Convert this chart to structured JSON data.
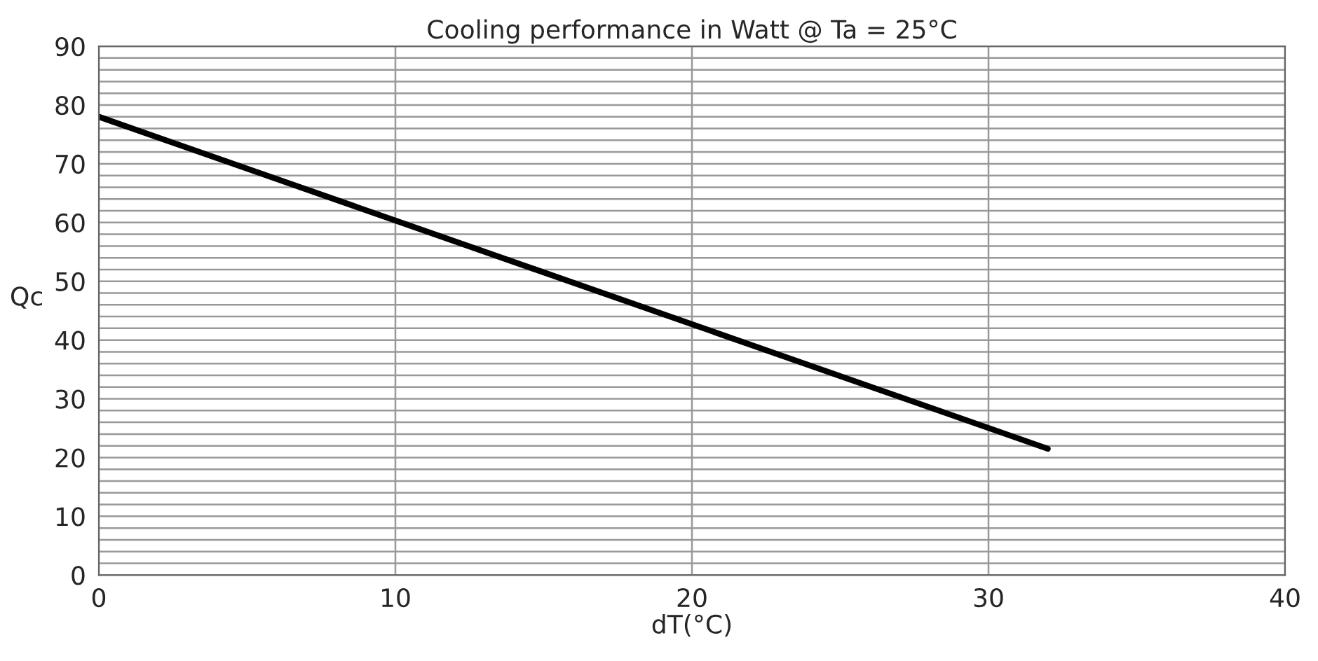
{
  "chart_data": {
    "type": "line",
    "title": "Cooling performance in Watt @ Ta = 25°C",
    "xlabel": "dT(°C)",
    "ylabel": "Qc",
    "x": [
      0,
      32
    ],
    "series": [
      {
        "color": "#000000",
        "values": [
          78,
          21.5
        ]
      }
    ],
    "xlim": [
      0,
      40
    ],
    "xticks": [
      0,
      10,
      20,
      30,
      40
    ],
    "ylim": [
      0,
      90
    ],
    "yticks": [
      0,
      {
        "value": 2,
        "label": null
      },
      {
        "value": 4,
        "label": null
      },
      {
        "value": 6,
        "label": null
      },
      {
        "value": 8,
        "label": null
      },
      10,
      {
        "value": 12,
        "label": null
      },
      {
        "value": 14,
        "label": null
      },
      {
        "value": 16,
        "label": null
      },
      {
        "value": 18,
        "label": null
      },
      20,
      {
        "value": 22,
        "label": null
      },
      {
        "value": 24,
        "label": null
      },
      {
        "value": 26,
        "label": null
      },
      {
        "value": 28,
        "label": null
      },
      30,
      {
        "value": 32,
        "label": null
      },
      {
        "value": 34,
        "label": null
      },
      {
        "value": 36,
        "label": null
      },
      {
        "value": 38,
        "label": null
      },
      40,
      {
        "value": 42,
        "label": null
      },
      {
        "value": 44,
        "label": null
      },
      {
        "value": 46,
        "label": null
      },
      {
        "value": 48,
        "label": null
      },
      50,
      {
        "value": 52,
        "label": null
      },
      {
        "value": 54,
        "label": null
      },
      {
        "value": 56,
        "label": null
      },
      {
        "value": 58,
        "label": null
      },
      60,
      {
        "value": 62,
        "label": null
      },
      {
        "value": 64,
        "label": null
      },
      {
        "value": 66,
        "label": null
      },
      {
        "value": 68,
        "label": null
      },
      70,
      {
        "value": 72,
        "label": null
      },
      {
        "value": 74,
        "label": null
      },
      {
        "value": 76,
        "label": null
      },
      {
        "value": 78,
        "label": null
      },
      80,
      {
        "value": 82,
        "label": null
      },
      {
        "value": 84,
        "label": null
      },
      {
        "value": 86,
        "label": null
      },
      {
        "value": 88,
        "label": null
      },
      90
    ],
    "grid": true,
    "legend": false,
    "marker": "none",
    "line_style": "solid"
  }
}
